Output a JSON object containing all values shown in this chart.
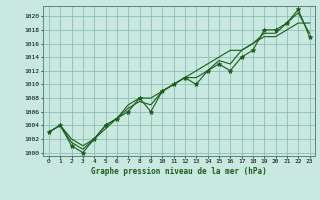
{
  "title": "Graphe pression niveau de la mer (hPa)",
  "x_labels": [
    "0",
    "1",
    "2",
    "3",
    "4",
    "5",
    "6",
    "7",
    "8",
    "9",
    "10",
    "11",
    "12",
    "13",
    "14",
    "15",
    "16",
    "17",
    "18",
    "19",
    "20",
    "21",
    "22",
    "23"
  ],
  "ylim": [
    999.5,
    1021.5
  ],
  "yticks": [
    1000,
    1002,
    1004,
    1006,
    1008,
    1010,
    1012,
    1014,
    1016,
    1018,
    1020
  ],
  "background_color": "#c8e8e0",
  "grid_color": "#8cc0b8",
  "line_color": "#1a5c1a",
  "marker_color": "#1a5c1a",
  "data_y1": [
    1003,
    1004,
    1001,
    1000,
    1002,
    1004,
    1005,
    1006,
    1008,
    1006,
    1009,
    1010,
    1011,
    1010,
    1012,
    1013,
    1012,
    1014,
    1015,
    1018,
    1018,
    1019,
    1021,
    1017
  ],
  "data_y2": [
    1003,
    1004,
    1002,
    1001,
    1002,
    1004,
    1005,
    1007,
    1008,
    1008,
    1009,
    1010,
    1011,
    1012,
    1013,
    1014,
    1015,
    1015,
    1016,
    1017,
    1017,
    1018,
    1019,
    1019
  ],
  "data_y3": [
    1003,
    1004,
    1001.5,
    1000.5,
    1002,
    1003.5,
    1005,
    1006.5,
    1007.5,
    1007,
    1009,
    1010,
    1011,
    1011,
    1012,
    1013.5,
    1013,
    1015,
    1016,
    1017.5,
    1017.5,
    1019,
    1020.5,
    1017.5
  ]
}
